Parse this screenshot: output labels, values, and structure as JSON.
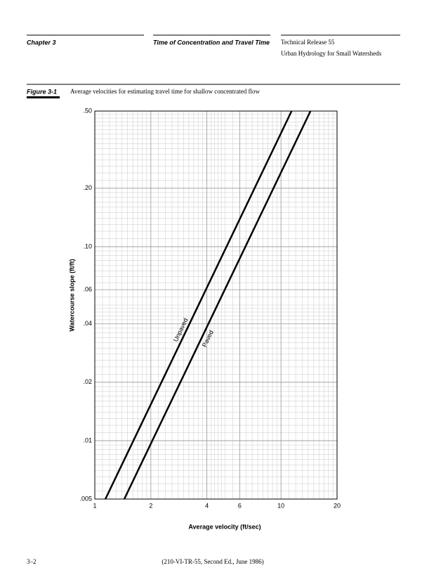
{
  "header": {
    "chapter": "Chapter 3",
    "section": "Time of Concentration and Travel Time",
    "report": "Technical Release 55",
    "report_subtitle": "Urban Hydrology for Small Watersheds"
  },
  "figure": {
    "label": "Figure 3-1",
    "caption": "Average velocities for estimating travel time for shallow concentrated flow"
  },
  "chart_data": {
    "type": "line",
    "xlabel": "Average velocity (ft/sec)",
    "ylabel": "Watercourse slope (ft/ft)",
    "xscale": "log",
    "yscale": "log",
    "grid": true,
    "minor_grid": true,
    "xlim": [
      1,
      20
    ],
    "ylim": [
      0.005,
      0.5
    ],
    "xticks": [
      1,
      2,
      4,
      6,
      10,
      20
    ],
    "yticks": [
      {
        "value": 0.005,
        "label": ".005"
      },
      {
        "value": 0.01,
        "label": ".01"
      },
      {
        "value": 0.02,
        "label": ".02"
      },
      {
        "value": 0.04,
        "label": ".04"
      },
      {
        "value": 0.06,
        "label": ".06"
      },
      {
        "value": 0.1,
        "label": ".10"
      },
      {
        "value": 0.2,
        "label": ".20"
      },
      {
        "value": 0.5,
        "label": ".50"
      }
    ],
    "series": [
      {
        "name": "Unpaved",
        "color": "#000000",
        "x": [
          1.14,
          11.4
        ],
        "values": [
          0.005,
          0.5
        ]
      },
      {
        "name": "Paved",
        "color": "#000000",
        "x": [
          1.44,
          14.4
        ],
        "values": [
          0.005,
          0.5
        ]
      }
    ]
  },
  "footer": {
    "page": "3–2",
    "citation": "(210-VI-TR-55, Second Ed., June 1986)"
  }
}
